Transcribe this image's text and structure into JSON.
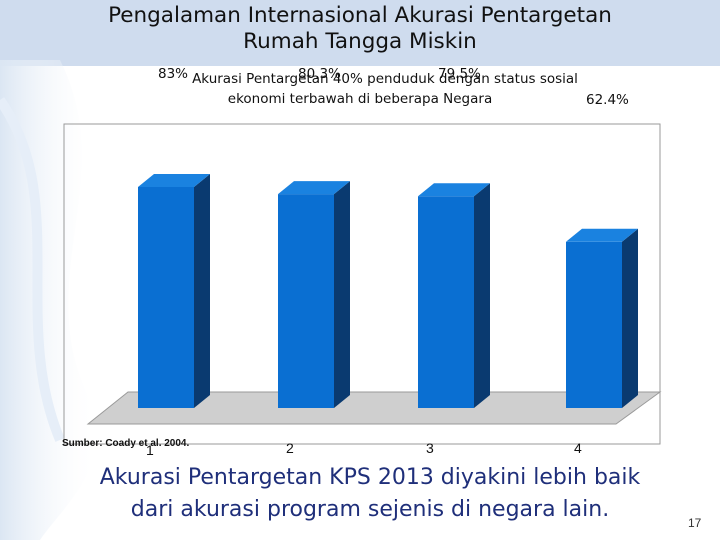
{
  "slide": {
    "title_line1": "Pengalaman Internasional Akurasi Pentargetan",
    "title_line2": "Rumah Tangga Miskin",
    "conclusion_line1": "Akurasi Pentargetan KPS 2013 diyakini lebih baik",
    "conclusion_line2": "dari akurasi program sejenis di negara lain.",
    "page_number": "17",
    "source_note": "Sumber: Coady et al. 2004."
  },
  "chart_data": {
    "type": "bar",
    "title_line1": "Akurasi Pentargetan 40% penduduk dengan status sosial",
    "title_line2": "ekonomi terbawah di beberapa Negara",
    "categories": [
      "1",
      "2",
      "3",
      "4"
    ],
    "values": [
      83,
      80.3,
      79.5,
      62.4
    ],
    "value_labels": [
      "83%",
      "80.3%",
      "79.5%",
      "62.4%"
    ],
    "ylim": [
      0,
      100
    ],
    "grid": false,
    "legend": "none",
    "bar_color": "#0a6fd2",
    "bar_side_color": "#0a3a70",
    "bar_top_color": "#1a82e0",
    "floor_color": "#cfcfcf"
  }
}
